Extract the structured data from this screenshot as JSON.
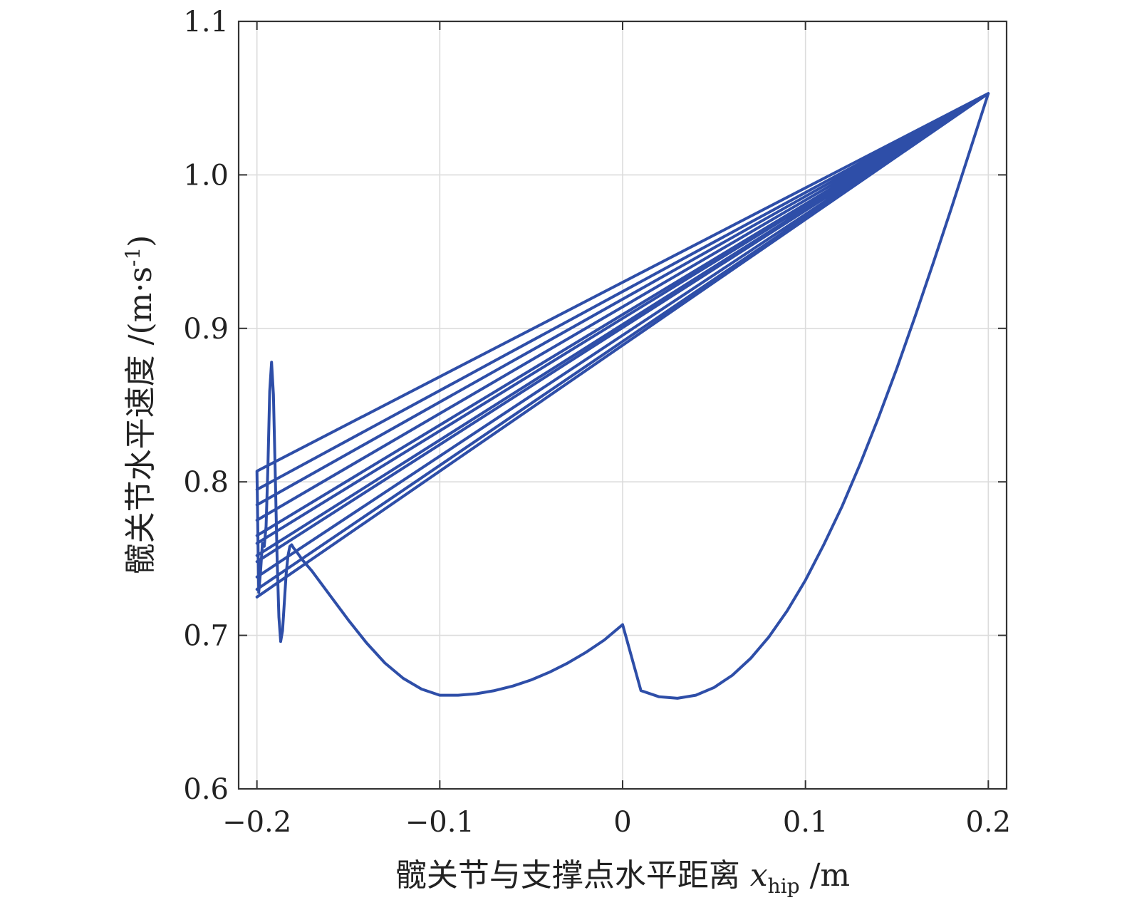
{
  "chart_data": {
    "type": "line",
    "title": "",
    "xlabel": {
      "text": "髋关节与支撑点水平距离 ",
      "var_main": "x",
      "var_sub": "hip",
      "unit": " /m"
    },
    "ylabel": {
      "text": "髋关节水平速度 /(m·s",
      "sup": "-1",
      "close": ")"
    },
    "xlim": [
      -0.21,
      0.21
    ],
    "ylim": [
      0.6,
      1.1
    ],
    "xticks": [
      -0.2,
      -0.1,
      0,
      0.1,
      0.2
    ],
    "xtick_labels": [
      "−0.2",
      "−0.1",
      "0",
      "0.1",
      "0.2"
    ],
    "yticks": [
      0.6,
      0.7,
      0.8,
      0.9,
      1.0,
      1.1
    ],
    "ytick_labels": [
      "0.6",
      "0.7",
      "0.8",
      "0.9",
      "1.0",
      "1.1"
    ],
    "grid": true,
    "line_color": "#2e4ea8",
    "series": [
      {
        "x": [
          0.2,
          0.19,
          0.18,
          0.17,
          0.16,
          0.15,
          0.14,
          0.13,
          0.12,
          0.11,
          0.1,
          0.09,
          0.08,
          0.07,
          0.06,
          0.05,
          0.04,
          0.03,
          0.02,
          0.01,
          0.0,
          -0.01,
          -0.02,
          -0.03,
          -0.04,
          -0.05,
          -0.06,
          -0.07,
          -0.08,
          -0.09,
          -0.1,
          -0.11,
          -0.12,
          -0.13,
          -0.14,
          -0.15,
          -0.16,
          -0.17,
          -0.175,
          -0.178,
          -0.18,
          -0.181,
          -0.182,
          -0.183,
          -0.184,
          -0.185,
          -0.186,
          -0.187,
          -0.188,
          -0.189,
          -0.19,
          -0.191,
          -0.192,
          -0.193,
          -0.194,
          -0.195,
          -0.196,
          -0.197,
          -0.198,
          -0.199,
          -0.2,
          0.2,
          -0.2,
          0.2,
          -0.2,
          0.2,
          -0.2,
          0.2,
          -0.2,
          0.2,
          -0.2,
          0.2,
          -0.2,
          0.2,
          -0.2,
          0.2,
          -0.2,
          0.2,
          -0.2,
          0.2,
          -0.2,
          0.2
        ],
        "y": [
          1.053,
          1.016,
          0.979,
          0.943,
          0.908,
          0.874,
          0.842,
          0.812,
          0.784,
          0.759,
          0.736,
          0.716,
          0.699,
          0.685,
          0.674,
          0.666,
          0.661,
          0.659,
          0.66,
          0.664,
          0.707,
          0.697,
          0.689,
          0.682,
          0.676,
          0.671,
          0.667,
          0.664,
          0.662,
          0.661,
          0.661,
          0.665,
          0.672,
          0.682,
          0.695,
          0.71,
          0.726,
          0.742,
          0.749,
          0.754,
          0.757,
          0.759,
          0.758,
          0.752,
          0.74,
          0.722,
          0.703,
          0.696,
          0.712,
          0.752,
          0.807,
          0.857,
          0.878,
          0.859,
          0.81,
          0.771,
          0.758,
          0.76,
          0.742,
          0.728,
          0.807,
          1.053,
          0.785,
          1.053,
          0.795,
          1.053,
          0.76,
          1.053,
          0.775,
          1.053,
          0.748,
          1.053,
          0.765,
          1.053,
          0.738,
          1.053,
          0.752,
          1.053,
          0.73,
          1.053,
          0.725,
          1.053
        ]
      }
    ]
  }
}
